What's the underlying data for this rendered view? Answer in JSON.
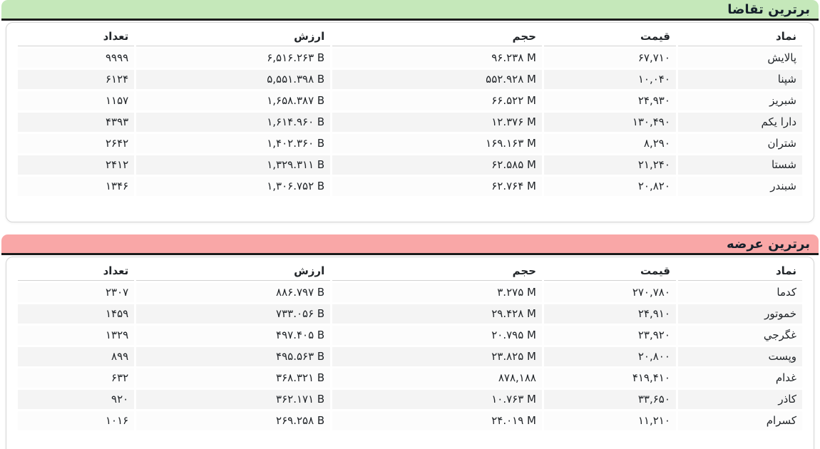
{
  "columns": [
    "نماد",
    "قیمت",
    "حجم",
    "ارزش",
    "تعداد"
  ],
  "colors": {
    "demand_accent": "#c5e8ba",
    "supply_accent": "#f9a7a7",
    "bar_underline": "#1c1c1c",
    "row_even_bg": "#f4f4f4",
    "row_odd_bg": "#fcfcfc",
    "card_border": "#d6d6d6"
  },
  "sections": [
    {
      "title": "برترین تقاضا",
      "accent_color": "#c5e8ba",
      "rows": [
        {
          "symbol": "پالایش",
          "price": "۶۷,۷۱۰",
          "volume": "۹۶.۲۳۸ M",
          "value": "۶,۵۱۶.۲۶۳ B",
          "count": "۹۹۹۹"
        },
        {
          "symbol": "شپنا",
          "price": "۱۰,۰۴۰",
          "volume": "۵۵۲.۹۲۸ M",
          "value": "۵,۵۵۱.۳۹۸ B",
          "count": "۶۱۲۴"
        },
        {
          "symbol": "شبریز",
          "price": "۲۴,۹۳۰",
          "volume": "۶۶.۵۲۲ M",
          "value": "۱,۶۵۸.۳۸۷ B",
          "count": "۱۱۵۷"
        },
        {
          "symbol": "دارا یکم",
          "price": "۱۳۰,۴۹۰",
          "volume": "۱۲.۳۷۶ M",
          "value": "۱,۶۱۴.۹۶۰ B",
          "count": "۴۳۹۳"
        },
        {
          "symbol": "شتران",
          "price": "۸,۲۹۰",
          "volume": "۱۶۹.۱۶۳ M",
          "value": "۱,۴۰۲.۳۶۰ B",
          "count": "۲۶۴۲"
        },
        {
          "symbol": "شستا",
          "price": "۲۱,۲۴۰",
          "volume": "۶۲.۵۸۵ M",
          "value": "۱,۳۲۹.۳۱۱ B",
          "count": "۲۴۱۲"
        },
        {
          "symbol": "شبندر",
          "price": "۲۰,۸۲۰",
          "volume": "۶۲.۷۶۴ M",
          "value": "۱,۳۰۶.۷۵۲ B",
          "count": "۱۳۴۶"
        }
      ]
    },
    {
      "title": "برترین عرضه",
      "accent_color": "#f9a7a7",
      "rows": [
        {
          "symbol": "کدما",
          "price": "۲۷۰,۷۸۰",
          "volume": "۳.۲۷۵ M",
          "value": "۸۸۶.۷۹۷ B",
          "count": "۲۳۰۷"
        },
        {
          "symbol": "خموتور",
          "price": "۲۴,۹۱۰",
          "volume": "۲۹.۴۲۸ M",
          "value": "۷۳۳.۰۵۶ B",
          "count": "۱۴۵۹"
        },
        {
          "symbol": "غگرجي",
          "price": "۲۳,۹۲۰",
          "volume": "۲۰.۷۹۵ M",
          "value": "۴۹۷.۴۰۵ B",
          "count": "۱۳۲۹"
        },
        {
          "symbol": "وپست",
          "price": "۲۰,۸۰۰",
          "volume": "۲۳.۸۲۵ M",
          "value": "۴۹۵.۵۶۳ B",
          "count": "۸۹۹"
        },
        {
          "symbol": "غدام",
          "price": "۴۱۹,۴۱۰",
          "volume": "۸۷۸,۱۸۸",
          "value": "۳۶۸.۳۲۱ B",
          "count": "۶۳۲"
        },
        {
          "symbol": "کاذر",
          "price": "۳۳,۶۵۰",
          "volume": "۱۰.۷۶۳ M",
          "value": "۳۶۲.۱۷۱ B",
          "count": "۹۲۰"
        },
        {
          "symbol": "کسرام",
          "price": "۱۱,۲۱۰",
          "volume": "۲۴.۰۱۹ M",
          "value": "۲۶۹.۲۵۸ B",
          "count": "۱۰۱۶"
        }
      ]
    }
  ]
}
